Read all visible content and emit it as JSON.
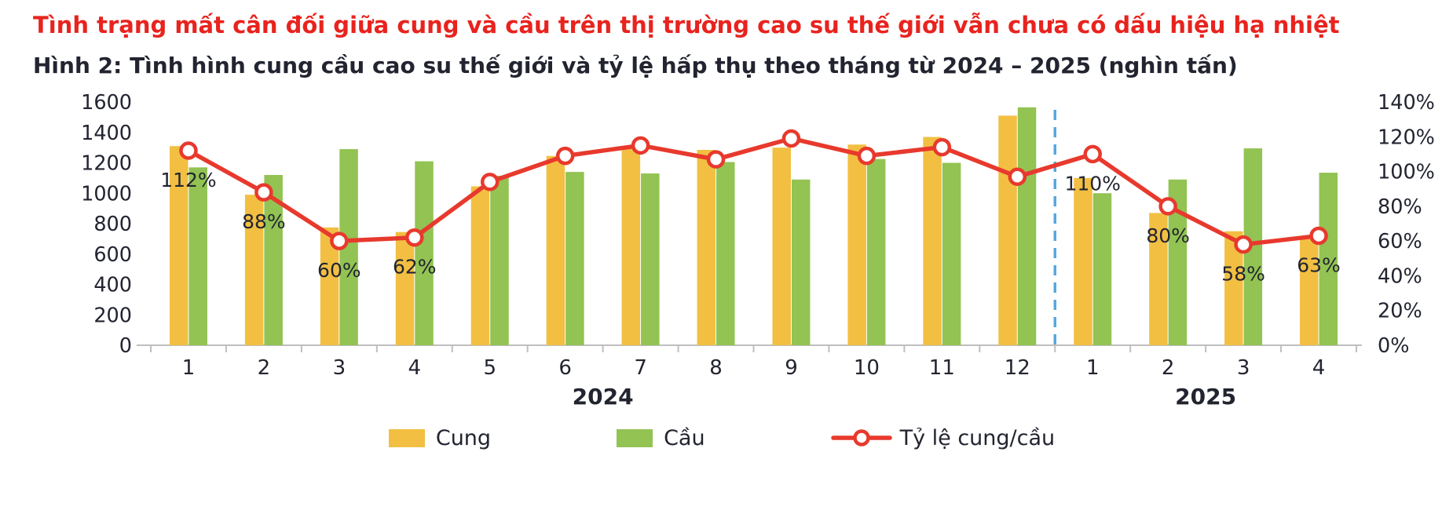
{
  "header": {
    "title": "Tình trạng mất cân đối giữa cung và cầu trên thị trường cao su thế giới vẫn chưa có dấu hiệu hạ nhiệt",
    "caption": "Hình 2: Tình hình cung cầu cao su thế giới và tỷ lệ hấp thụ theo tháng từ 2024 – 2025 (nghìn tấn)"
  },
  "colors": {
    "title_red": "#E8231E",
    "text_dark": "#222430",
    "supply_yellow": "#F2BF42",
    "demand_green": "#92C353",
    "ratio_red": "#E8392D",
    "divider_blue": "#55A8DF",
    "axis_gray": "#BFBFBF"
  },
  "chart_data": {
    "type": "bar",
    "subtype": "grouped bars with secondary-axis line",
    "title": "Tình hình cung cầu cao su thế giới và tỷ lệ hấp thụ theo tháng từ 2024 – 2025 (nghìn tấn)",
    "unit": "nghìn tấn",
    "categories": [
      "1",
      "2",
      "3",
      "4",
      "5",
      "6",
      "7",
      "8",
      "9",
      "10",
      "11",
      "12",
      "1",
      "2",
      "3",
      "4"
    ],
    "year_groups": [
      {
        "label": "2024",
        "start_index": 0,
        "end_index": 11
      },
      {
        "label": "2025",
        "start_index": 12,
        "end_index": 15
      }
    ],
    "series": [
      {
        "name": "Cung",
        "type": "bar",
        "axis": "left",
        "values": [
          1310,
          990,
          775,
          745,
          1045,
          1245,
          1295,
          1285,
          1300,
          1320,
          1370,
          1510,
          1100,
          870,
          750,
          715
        ]
      },
      {
        "name": "Cầu",
        "type": "bar",
        "axis": "left",
        "values": [
          1170,
          1120,
          1290,
          1210,
          1115,
          1140,
          1130,
          1205,
          1090,
          1225,
          1200,
          1565,
          1000,
          1090,
          1295,
          1135
        ]
      },
      {
        "name": "Tỷ lệ cung/cầu",
        "type": "line",
        "axis": "right",
        "unit": "%",
        "values": [
          112,
          88,
          60,
          62,
          94,
          109,
          115,
          107,
          119,
          109,
          114,
          97,
          110,
          80,
          58,
          63
        ],
        "point_labels": [
          "112%",
          "88%",
          "60%",
          "62%",
          null,
          null,
          null,
          null,
          null,
          null,
          null,
          null,
          "110%",
          "80%",
          "58%",
          "63%"
        ]
      }
    ],
    "left_axis": {
      "min": 0,
      "max": 1600,
      "step": 200
    },
    "right_axis": {
      "min": 0,
      "max": 140,
      "step": 20,
      "suffix": "%"
    },
    "divider_after_index": 11,
    "grid": "off",
    "legend_position": "bottom"
  }
}
